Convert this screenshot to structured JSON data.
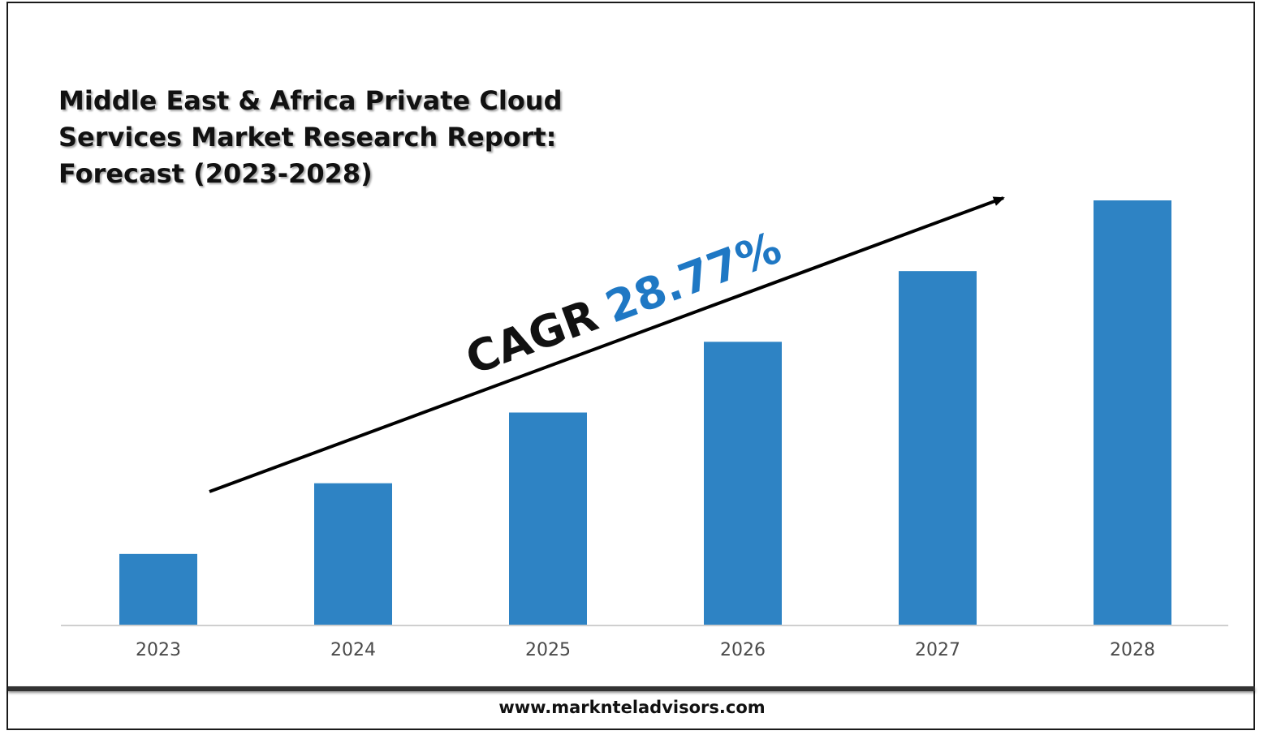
{
  "chart_data": {
    "type": "bar",
    "title": "Middle East & Africa Private Cloud Services Market Research Report: Forecast (2023-2028)",
    "categories": [
      "2023",
      "2024",
      "2025",
      "2026",
      "2027",
      "2028"
    ],
    "values": [
      1,
      2,
      3,
      4,
      5,
      6
    ],
    "ylim": [
      0,
      6
    ],
    "bar_color": "#2e83c4",
    "grid": false,
    "annotation": {
      "prefix": "CAGR",
      "value": "28.77%",
      "value_color": "#1f78c4"
    }
  },
  "footer": {
    "url": "www.marknteladvisors.com"
  }
}
